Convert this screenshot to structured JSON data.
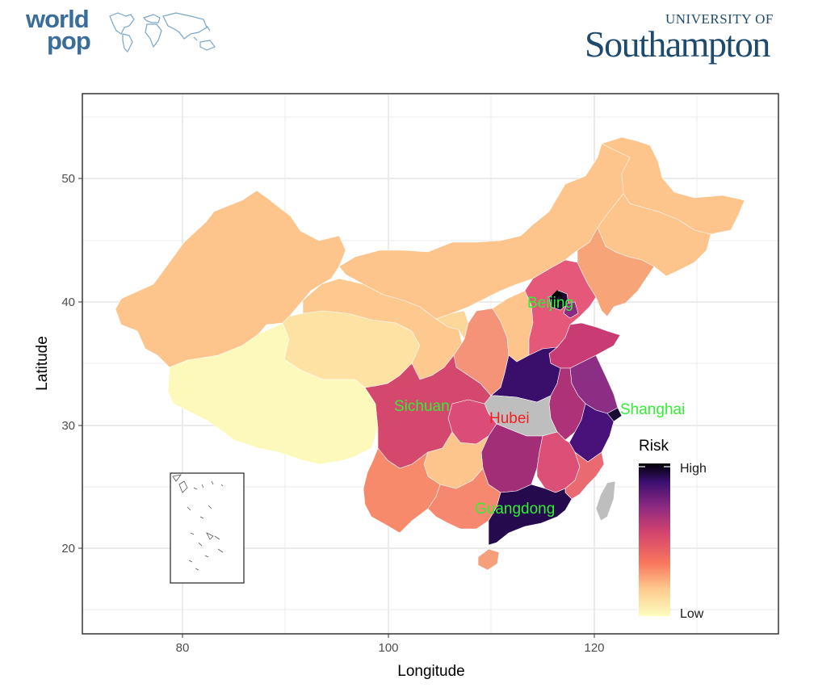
{
  "logos": {
    "worldpop_line1": "world",
    "worldpop_line2": "pop",
    "university_of": "UNIVERSITY OF",
    "southampton": "Southampton"
  },
  "axes": {
    "x_title": "Longitude",
    "y_title": "Latitude",
    "x_ticks": [
      "80",
      "100",
      "120"
    ],
    "y_ticks": [
      "20",
      "30",
      "40",
      "50"
    ]
  },
  "legend": {
    "title": "Risk",
    "high": "High",
    "low": "Low"
  },
  "labels": {
    "beijing": "Beijing",
    "sichuan": "Sichuan",
    "hubei": "Hubei",
    "shanghai": "Shanghai",
    "guangdong": "Guangdong"
  },
  "colors": {
    "highlight_label": "#33ee33",
    "hubei_label": "#ee2222",
    "no_data": "#bebebe",
    "risk_scale": [
      "#fcfdbf",
      "#feca8d",
      "#f1605d",
      "#b73779",
      "#721f81",
      "#2c115f",
      "#000004"
    ]
  }
}
